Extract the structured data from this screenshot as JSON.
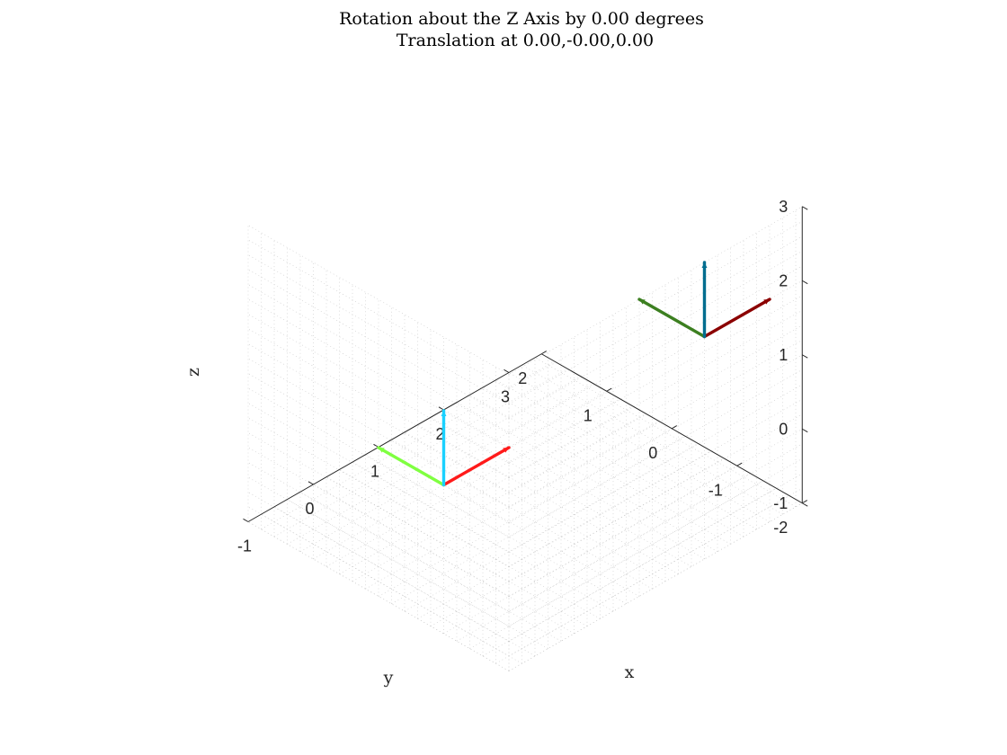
{
  "chart_data": {
    "type": "3d-line",
    "title": "Rotation about the Z Axis by 0.00 degrees",
    "subtitle": "Translation at 0.00,-0.00,0.00",
    "xlabel": "x",
    "ylabel": "y",
    "zlabel": "z",
    "xlim": [
      -1,
      3.5
    ],
    "ylim": [
      -2,
      2
    ],
    "zlim": [
      -1,
      3
    ],
    "xticks": [
      "-1",
      "0",
      "1",
      "2",
      "3"
    ],
    "yticks": [
      "-2",
      "-1",
      "0",
      "1",
      "2"
    ],
    "zticks": [
      "-1",
      "0",
      "1",
      "2",
      "3"
    ],
    "grid": "on",
    "minor_grid": "on",
    "view": "isometric",
    "frames": [
      {
        "origin": [
          0,
          0,
          0
        ],
        "axes": [
          {
            "axis": "x",
            "end": [
              1,
              0,
              0
            ],
            "color": "#ff1a1a"
          },
          {
            "axis": "y",
            "end": [
              0,
              1,
              0
            ],
            "color": "#7fff40"
          },
          {
            "axis": "z",
            "end": [
              0,
              0,
              1
            ],
            "color": "#1ad1ff"
          }
        ]
      },
      {
        "origin": [
          2,
          -2,
          2
        ],
        "axes": [
          {
            "axis": "x",
            "end": [
              3,
              -2,
              2
            ],
            "color": "#8b0000"
          },
          {
            "axis": "y",
            "end": [
              2,
              -1,
              2
            ],
            "color": "#3c7f20"
          },
          {
            "axis": "z",
            "end": [
              2,
              -2,
              3
            ],
            "color": "#006d8f"
          }
        ]
      }
    ]
  }
}
